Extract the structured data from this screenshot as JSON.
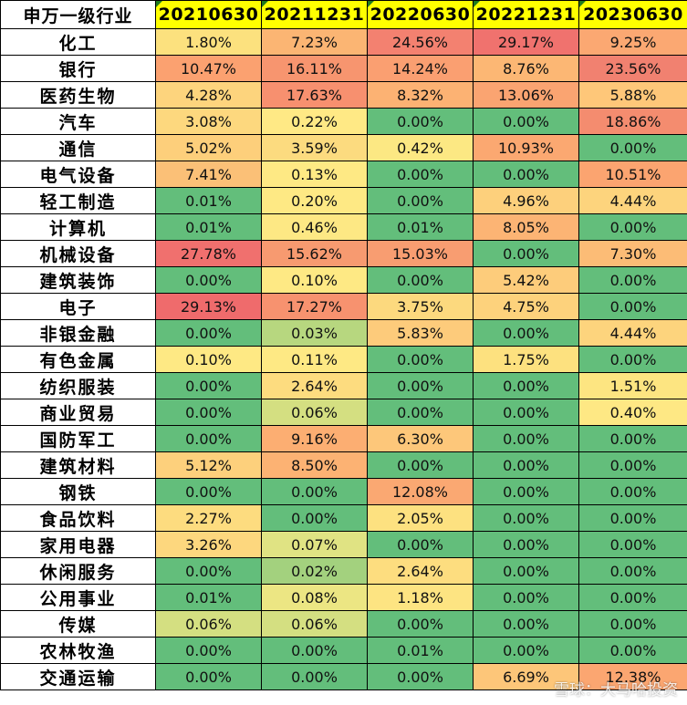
{
  "table": {
    "corner_header": "申万一级行业",
    "dates": [
      "20210630",
      "20211231",
      "20220630",
      "20221231",
      "20230630"
    ],
    "rows": [
      {
        "industry": "化工",
        "values": [
          "1.80%",
          "7.23%",
          "24.56%",
          "29.17%",
          "9.25%"
        ],
        "colors": [
          "#fce17e",
          "#fbb573",
          "#f38170",
          "#f0726e",
          "#fba872"
        ]
      },
      {
        "industry": "银行",
        "values": [
          "10.47%",
          "16.11%",
          "14.24%",
          "8.76%",
          "23.56%"
        ],
        "colors": [
          "#fba170",
          "#f7956f",
          "#fa9f71",
          "#fcb774",
          "#f18170"
        ]
      },
      {
        "industry": "医药生物",
        "values": [
          "4.28%",
          "17.63%",
          "8.32%",
          "13.06%",
          "5.88%"
        ],
        "colors": [
          "#fdd47d",
          "#f7906f",
          "#fcb273",
          "#faa471",
          "#fec779"
        ]
      },
      {
        "industry": "汽车",
        "values": [
          "3.08%",
          "0.22%",
          "0.00%",
          "0.00%",
          "18.86%"
        ],
        "colors": [
          "#fdd87e",
          "#ffe985",
          "#63be7b",
          "#63be7b",
          "#f48c6f"
        ]
      },
      {
        "industry": "通信",
        "values": [
          "5.02%",
          "3.59%",
          "0.42%",
          "10.93%",
          "0.00%"
        ],
        "colors": [
          "#fdcf7b",
          "#fcdb7f",
          "#fce883",
          "#fba871",
          "#63be7b"
        ]
      },
      {
        "industry": "电气设备",
        "values": [
          "7.41%",
          "0.13%",
          "0.00%",
          "0.00%",
          "10.51%"
        ],
        "colors": [
          "#fbc077",
          "#fee984",
          "#63be7b",
          "#63be7b",
          "#fba470"
        ]
      },
      {
        "industry": "轻工制造",
        "values": [
          "0.01%",
          "0.20%",
          "0.00%",
          "4.96%",
          "4.44%"
        ],
        "colors": [
          "#63be7b",
          "#fee984",
          "#63be7b",
          "#fdd07c",
          "#fdd47d"
        ]
      },
      {
        "industry": "计算机",
        "values": [
          "0.01%",
          "0.46%",
          "0.01%",
          "8.05%",
          "0.00%"
        ],
        "colors": [
          "#63be7b",
          "#fde884",
          "#63be7b",
          "#fcb474",
          "#63be7b"
        ]
      },
      {
        "industry": "机械设备",
        "values": [
          "27.78%",
          "15.62%",
          "15.03%",
          "0.00%",
          "7.30%"
        ],
        "colors": [
          "#f0706e",
          "#f79a70",
          "#f89d71",
          "#63be7b",
          "#fcbc76"
        ]
      },
      {
        "industry": "建筑装饰",
        "values": [
          "0.00%",
          "0.10%",
          "0.00%",
          "5.42%",
          "0.00%"
        ],
        "colors": [
          "#63be7b",
          "#fee984",
          "#63be7b",
          "#fdcc7b",
          "#63be7b"
        ]
      },
      {
        "industry": "电子",
        "values": [
          "29.13%",
          "17.27%",
          "3.75%",
          "4.75%",
          "0.00%"
        ],
        "colors": [
          "#ef6b6c",
          "#f7926f",
          "#fcd97e",
          "#fdd27c",
          "#63be7b"
        ]
      },
      {
        "industry": "非银金融",
        "values": [
          "0.00%",
          "0.03%",
          "5.83%",
          "0.00%",
          "4.44%"
        ],
        "colors": [
          "#63be7b",
          "#b7d77f",
          "#fdcb7b",
          "#63be7b",
          "#fdd47d"
        ]
      },
      {
        "industry": "有色金属",
        "values": [
          "0.10%",
          "0.11%",
          "0.00%",
          "1.75%",
          "0.00%"
        ],
        "colors": [
          "#fee984",
          "#fee984",
          "#63be7b",
          "#fde17f",
          "#63be7b"
        ]
      },
      {
        "industry": "纺织服装",
        "values": [
          "0.00%",
          "2.64%",
          "0.00%",
          "0.00%",
          "1.51%"
        ],
        "colors": [
          "#63be7b",
          "#fddc7f",
          "#63be7b",
          "#63be7b",
          "#fde581"
        ]
      },
      {
        "industry": "商业贸易",
        "values": [
          "0.00%",
          "0.06%",
          "0.00%",
          "0.00%",
          "0.40%"
        ],
        "colors": [
          "#63be7b",
          "#d4df81",
          "#63be7b",
          "#63be7b",
          "#fee884"
        ]
      },
      {
        "industry": "国防军工",
        "values": [
          "0.00%",
          "9.16%",
          "6.30%",
          "0.00%",
          "0.00%"
        ],
        "colors": [
          "#63be7b",
          "#fcae72",
          "#fdc77a",
          "#63be7b",
          "#63be7b"
        ]
      },
      {
        "industry": "建筑材料",
        "values": [
          "5.12%",
          "8.50%",
          "0.00%",
          "0.00%",
          "0.00%"
        ],
        "colors": [
          "#fdd07c",
          "#fcb273",
          "#63be7b",
          "#63be7b",
          "#63be7b"
        ]
      },
      {
        "industry": "钢铁",
        "values": [
          "0.00%",
          "0.00%",
          "12.08%",
          "0.00%",
          "0.00%"
        ],
        "colors": [
          "#63be7b",
          "#63be7b",
          "#faa872",
          "#63be7b",
          "#63be7b"
        ]
      },
      {
        "industry": "食品饮料",
        "values": [
          "2.27%",
          "0.00%",
          "2.05%",
          "0.00%",
          "0.00%"
        ],
        "colors": [
          "#fddc7f",
          "#63be7b",
          "#fde180",
          "#63be7b",
          "#63be7b"
        ]
      },
      {
        "industry": "家用电器",
        "values": [
          "3.26%",
          "0.07%",
          "0.00%",
          "0.00%",
          "0.00%"
        ],
        "colors": [
          "#fdd77e",
          "#e0e383",
          "#63be7b",
          "#63be7b",
          "#63be7b"
        ]
      },
      {
        "industry": "休闲服务",
        "values": [
          "0.00%",
          "0.02%",
          "2.64%",
          "0.00%",
          "0.00%"
        ],
        "colors": [
          "#63be7b",
          "#a3d17e",
          "#fddd7f",
          "#63be7b",
          "#63be7b"
        ]
      },
      {
        "industry": "公用事业",
        "values": [
          "0.01%",
          "0.08%",
          "1.18%",
          "0.00%",
          "0.00%"
        ],
        "colors": [
          "#63be7b",
          "#ece683",
          "#fde482",
          "#63be7b",
          "#63be7b"
        ]
      },
      {
        "industry": "传媒",
        "values": [
          "0.06%",
          "0.06%",
          "0.00%",
          "0.00%",
          "0.00%"
        ],
        "colors": [
          "#d4df81",
          "#d4df81",
          "#63be7b",
          "#63be7b",
          "#63be7b"
        ]
      },
      {
        "industry": "农林牧渔",
        "values": [
          "0.00%",
          "0.00%",
          "0.01%",
          "0.00%",
          "0.00%"
        ],
        "colors": [
          "#63be7b",
          "#63be7b",
          "#63be7b",
          "#63be7b",
          "#63be7b"
        ]
      },
      {
        "industry": "交通运输",
        "values": [
          "0.00%",
          "0.00%",
          "0.00%",
          "6.69%",
          "12.38%"
        ],
        "colors": [
          "#63be7b",
          "#63be7b",
          "#63be7b",
          "#fdc679",
          "#fba671"
        ]
      }
    ]
  },
  "watermark": "雪球：大马哈投资"
}
